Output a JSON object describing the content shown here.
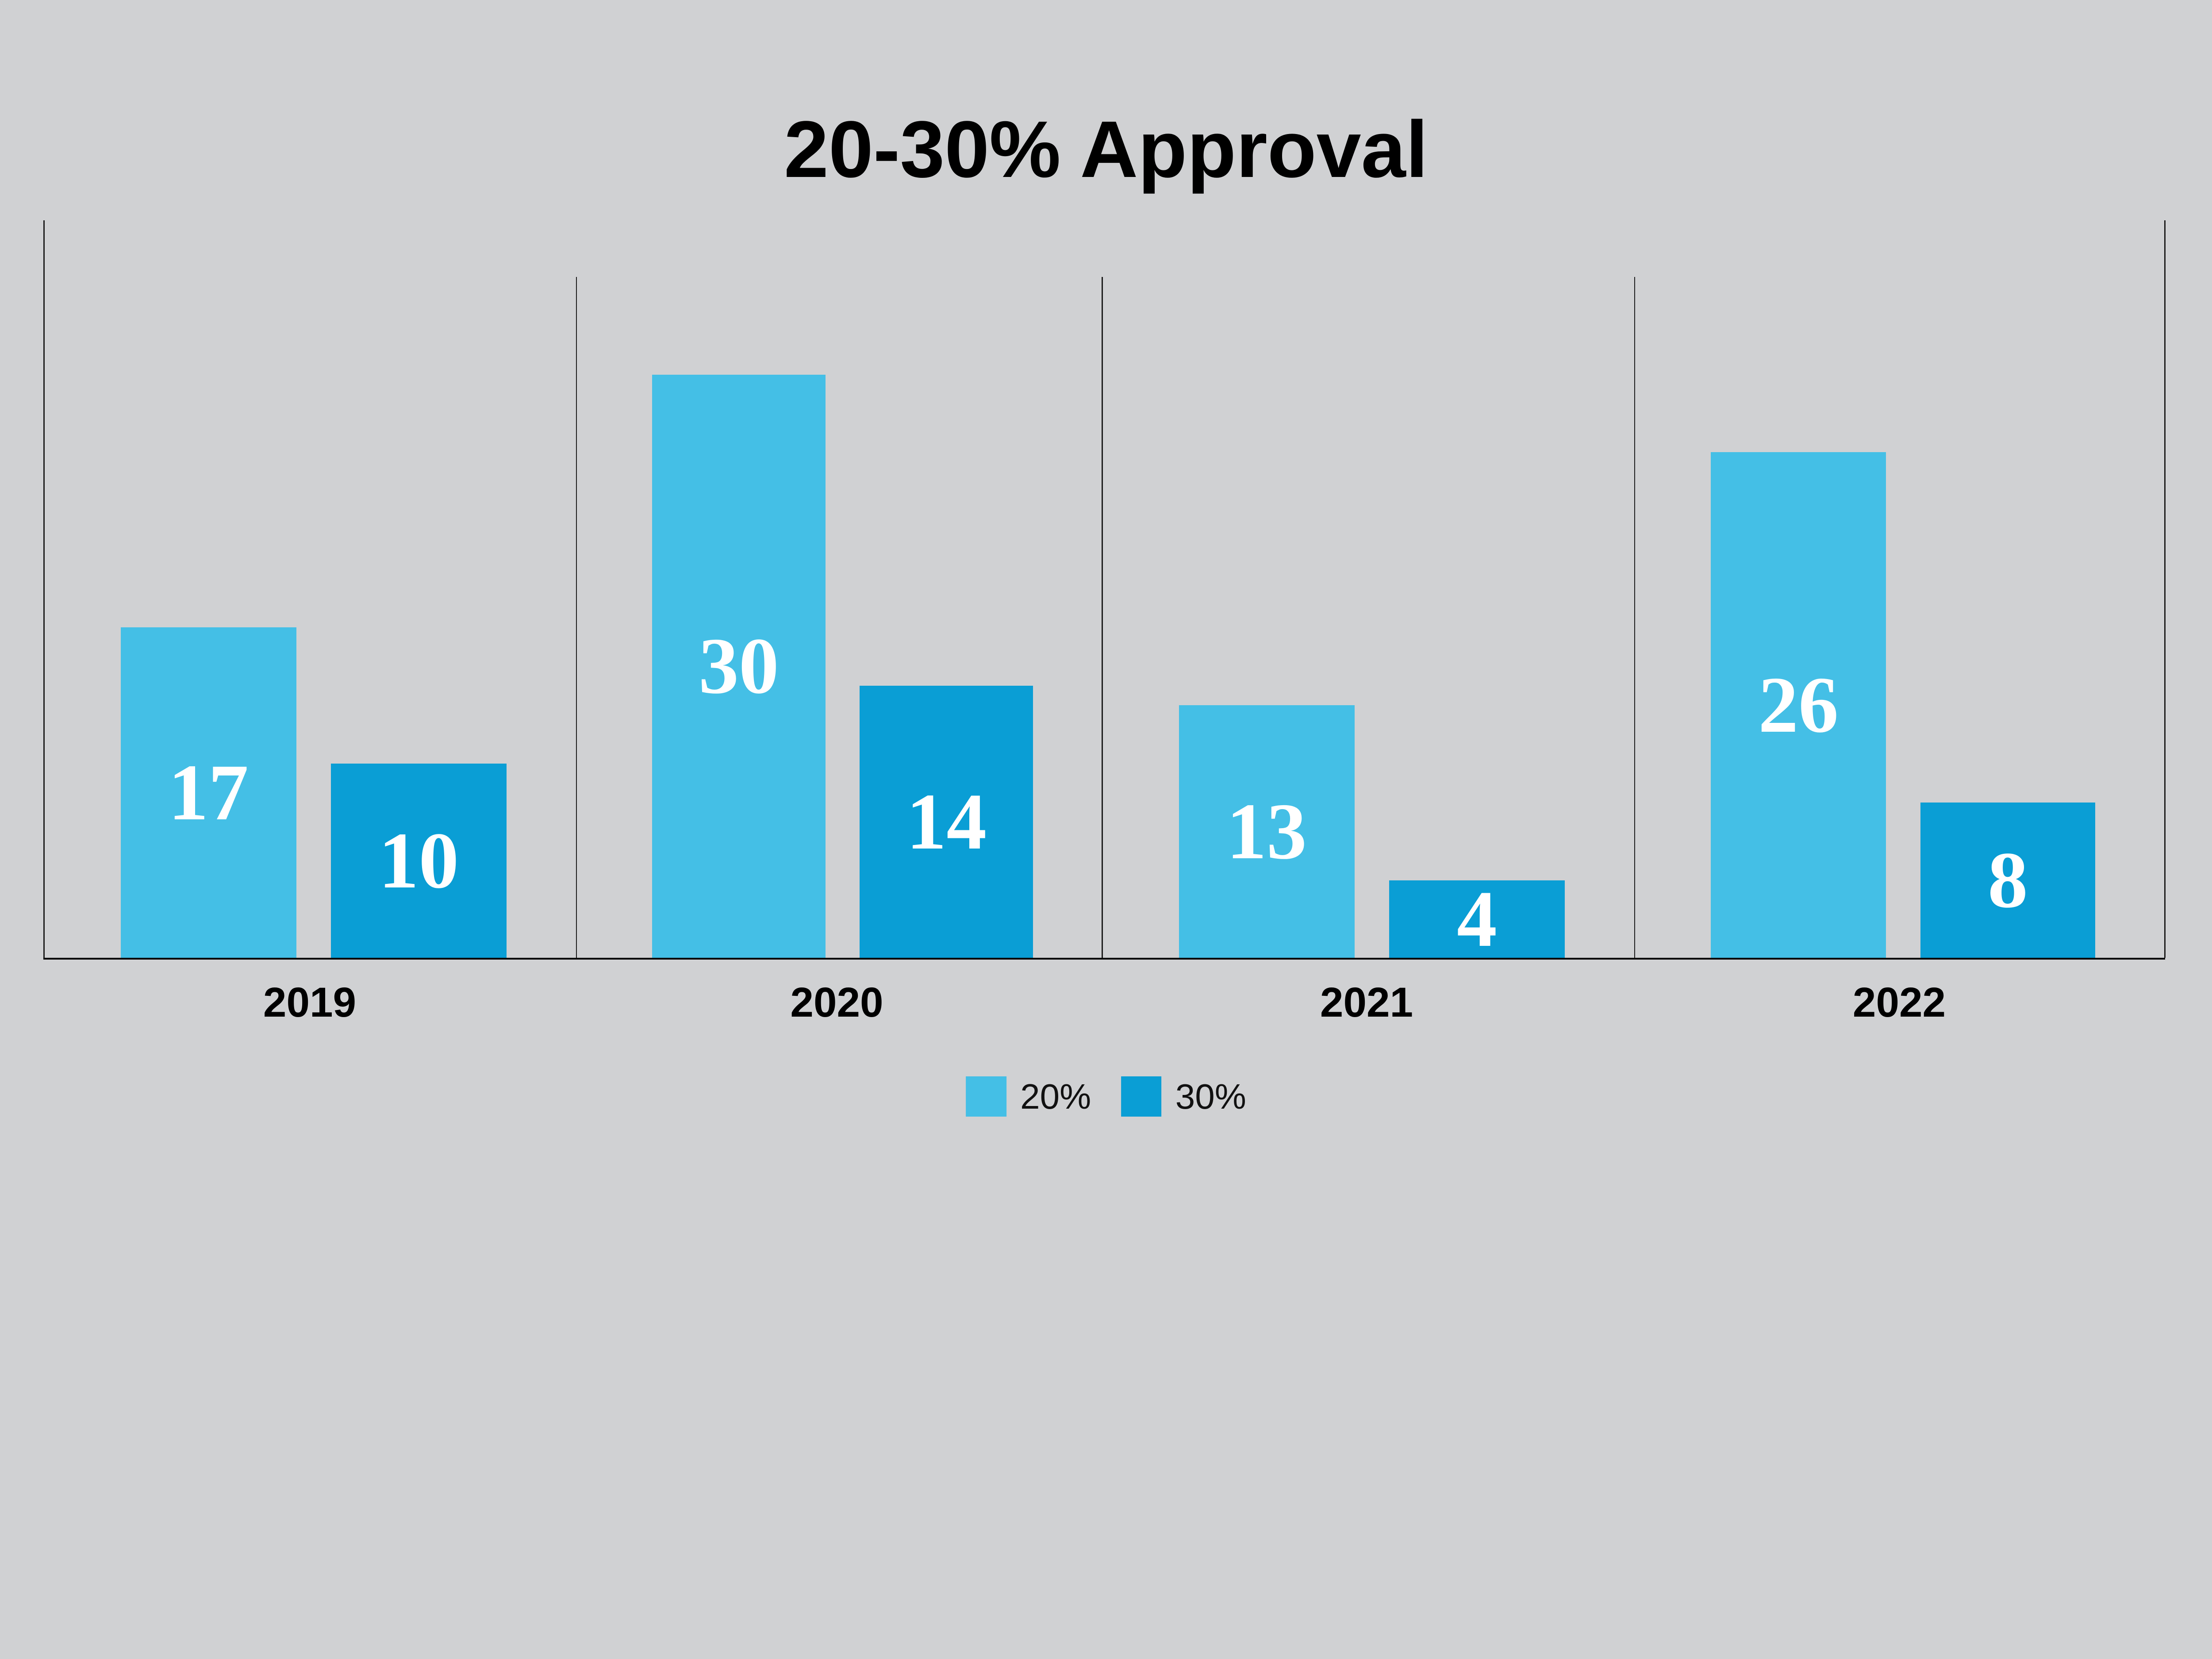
{
  "title": "20-30% Approval",
  "chart_data": {
    "type": "bar",
    "title": "20-30% Approval",
    "categories": [
      "2019",
      "2020",
      "2021",
      "2022"
    ],
    "series": [
      {
        "name": "20%",
        "color": "#44bfe6",
        "values": [
          17,
          30,
          13,
          26
        ]
      },
      {
        "name": "30%",
        "color": "#0a9ed5",
        "values": [
          10,
          14,
          4,
          8
        ]
      }
    ],
    "xlabel": "",
    "ylabel": "",
    "ylim": [
      0,
      38
    ],
    "grid": "vertical group separator lines, no y-axis ticks",
    "legend_position": "bottom-center",
    "background_color": "#d0d1d3",
    "bar_label_color": "#ffffff",
    "axis_line_color": "#000000"
  }
}
